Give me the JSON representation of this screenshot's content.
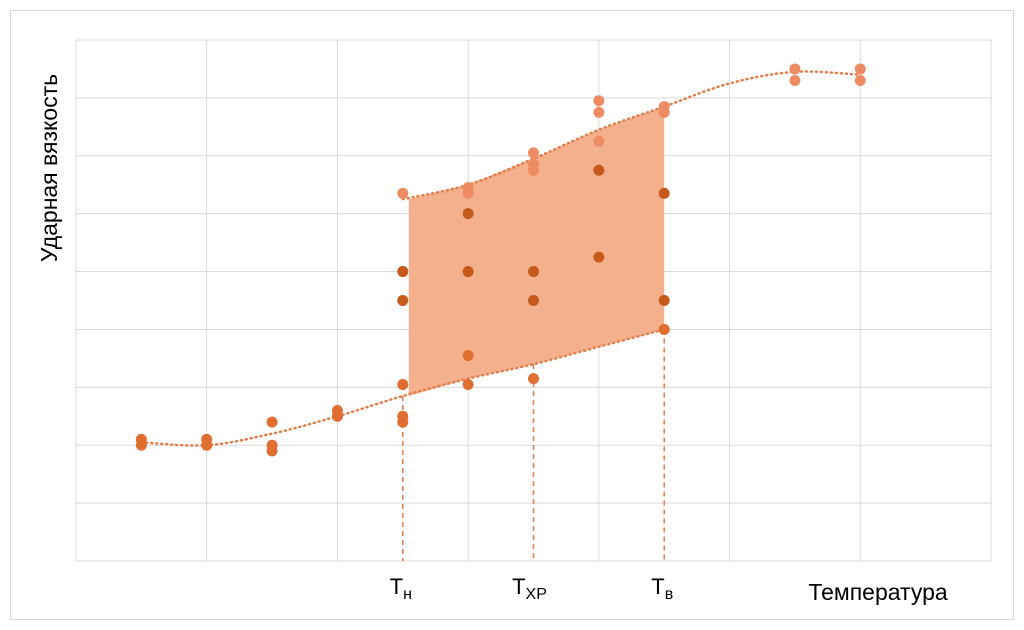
{
  "chart_data": {
    "type": "scatter",
    "title": "",
    "xlabel": "Температура",
    "ylabel": "Ударная вязкость",
    "xlim": [
      0,
      14
    ],
    "ylim": [
      0,
      9
    ],
    "grid": true,
    "x_markers": [
      {
        "x": 5,
        "label": "Т",
        "sub": "н"
      },
      {
        "x": 7,
        "label": "Т",
        "sub": "ХР"
      },
      {
        "x": 9,
        "label": "Т",
        "sub": "в"
      }
    ],
    "points_light": [
      {
        "x": 5,
        "y": 6.35
      },
      {
        "x": 6,
        "y": 6.45
      },
      {
        "x": 6,
        "y": 6.35
      },
      {
        "x": 7,
        "y": 7.05
      },
      {
        "x": 7,
        "y": 6.85
      },
      {
        "x": 7,
        "y": 6.75
      },
      {
        "x": 8,
        "y": 7.95
      },
      {
        "x": 8,
        "y": 7.75
      },
      {
        "x": 8,
        "y": 7.25
      },
      {
        "x": 9,
        "y": 7.85
      },
      {
        "x": 9,
        "y": 7.75
      },
      {
        "x": 11,
        "y": 8.5
      },
      {
        "x": 11,
        "y": 8.3
      },
      {
        "x": 12,
        "y": 8.5
      },
      {
        "x": 12,
        "y": 8.3
      }
    ],
    "points_mid": [
      {
        "x": 1,
        "y": 2.1
      },
      {
        "x": 1,
        "y": 2.0
      },
      {
        "x": 2,
        "y": 2.1
      },
      {
        "x": 2,
        "y": 2.0
      },
      {
        "x": 3,
        "y": 2.4
      },
      {
        "x": 3,
        "y": 2.0
      },
      {
        "x": 3,
        "y": 1.9
      },
      {
        "x": 4,
        "y": 2.6
      },
      {
        "x": 4,
        "y": 2.5
      },
      {
        "x": 5,
        "y": 3.05
      },
      {
        "x": 5,
        "y": 2.5
      },
      {
        "x": 5,
        "y": 2.4
      },
      {
        "x": 6,
        "y": 3.55
      },
      {
        "x": 6,
        "y": 3.05
      },
      {
        "x": 7,
        "y": 3.15
      },
      {
        "x": 9,
        "y": 4.0
      }
    ],
    "points_dark": [
      {
        "x": 5,
        "y": 5.0
      },
      {
        "x": 5,
        "y": 4.5
      },
      {
        "x": 6,
        "y": 6.0
      },
      {
        "x": 6,
        "y": 5.0
      },
      {
        "x": 7,
        "y": 5.0
      },
      {
        "x": 7,
        "y": 4.5
      },
      {
        "x": 8,
        "y": 6.75
      },
      {
        "x": 8,
        "y": 5.25
      },
      {
        "x": 9,
        "y": 6.35
      },
      {
        "x": 9,
        "y": 4.5
      }
    ],
    "upper_curve": [
      [
        5,
        6.25
      ],
      [
        6,
        6.5
      ],
      [
        7,
        6.95
      ],
      [
        8,
        7.45
      ],
      [
        9,
        7.85
      ],
      [
        10,
        8.25
      ],
      [
        11,
        8.45
      ],
      [
        12,
        8.4
      ]
    ],
    "lower_curve": [
      [
        1,
        2.05
      ],
      [
        2,
        2.0
      ],
      [
        3,
        2.2
      ],
      [
        4,
        2.5
      ],
      [
        5,
        2.85
      ],
      [
        6,
        3.15
      ],
      [
        7,
        3.4
      ],
      [
        8,
        3.7
      ],
      [
        9,
        4.0
      ]
    ],
    "band_upper": [
      [
        5,
        6.25
      ],
      [
        6,
        6.5
      ],
      [
        7,
        6.95
      ],
      [
        8,
        7.45
      ],
      [
        9,
        7.85
      ]
    ],
    "band_lower": [
      [
        5,
        2.85
      ],
      [
        6,
        3.15
      ],
      [
        7,
        3.4
      ],
      [
        8,
        3.7
      ],
      [
        9,
        4.0
      ]
    ],
    "colors": {
      "grid": "#d9d9d9",
      "band": "#f4b08d",
      "light": "#ed8c62",
      "mid": "#e06e31",
      "dark": "#c55a1b",
      "curve": "#e57b45",
      "marker_line": "#e57b45"
    }
  }
}
